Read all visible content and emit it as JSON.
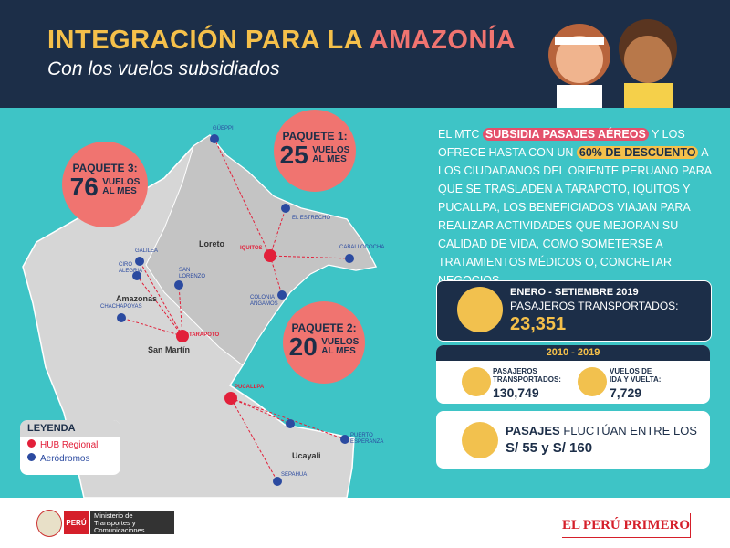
{
  "header": {
    "title_part1": "INTEGRACIÓN PARA LA",
    "title_part2": "AMAZONÍA",
    "subtitle": "Con los vuelos subsidiados"
  },
  "packages": [
    {
      "label": "PAQUETE 1:",
      "flights": 25,
      "unit_line1": "VUELOS",
      "unit_line2": "AL MES"
    },
    {
      "label": "PAQUETE 2:",
      "flights": 20,
      "unit_line1": "VUELOS",
      "unit_line2": "AL MES"
    },
    {
      "label": "PAQUETE 3:",
      "flights": 76,
      "unit_line1": "VUELOS",
      "unit_line2": "AL MES"
    }
  ],
  "map": {
    "regions": [
      "Loreto",
      "Amazonas",
      "San Martín",
      "Ucayali"
    ],
    "hubs": [
      "IQUITOS",
      "TARAPOTO",
      "PUCALLPA"
    ],
    "airports": [
      "GÜEPPI",
      "EL ESTRECHO",
      "CABALLOCOCHA",
      "GALILEA",
      "CIRO ALEGRIA",
      "SAN LORENZO",
      "COLONIA ANGAMOS",
      "CHACHAPOYAS",
      "PUERTO ESPERANZA",
      "SEPAHUA"
    ]
  },
  "legend": {
    "title": "LEYENDA",
    "items": [
      "HUB Regional",
      "Aeródromos"
    ]
  },
  "paragraph": {
    "p1": "EL MTC ",
    "h1": "SUBSIDIA PASAJES AÉREOS",
    "p2": " Y LOS OFRECE HASTA CON UN ",
    "h2": "60% DE DESCUENTO",
    "p3": " A LOS CIUDADANOS DEL ORIENTE PERUANO PARA QUE SE TRASLADEN A TARAPOTO, IQUITOS Y PUCALLPA, LOS BENEFICIADOS VIAJAN PARA REALIZAR ACTIVIDADES QUE MEJORAN SU CALIDAD DE VIDA, COMO SOMETERSE A TRATAMIENTOS MÉDICOS O, CONCRETAR NEGOCIOS."
  },
  "stats_2019": {
    "period": "ENERO - SETIEMBRE 2019",
    "label": "PASAJEROS TRANSPORTADOS:",
    "value": "23,351"
  },
  "stats_2010_2019": {
    "period": "2010 - 2019",
    "passengers_label": "PASAJEROS TRANSPORTADOS:",
    "passengers": "130,749",
    "flights_label": "VUELOS DE IDA Y VUELTA:",
    "flights": "7,729"
  },
  "fares": {
    "bold": "PASAJES",
    "text": " FLUCTÚAN ENTRE LOS",
    "range": "S/ 55 y S/ 160"
  },
  "footer": {
    "country": "PERÚ",
    "ministry": "Ministerio de Transportes y Comunicaciones",
    "slogan": "EL PERÚ PRIMERO"
  }
}
